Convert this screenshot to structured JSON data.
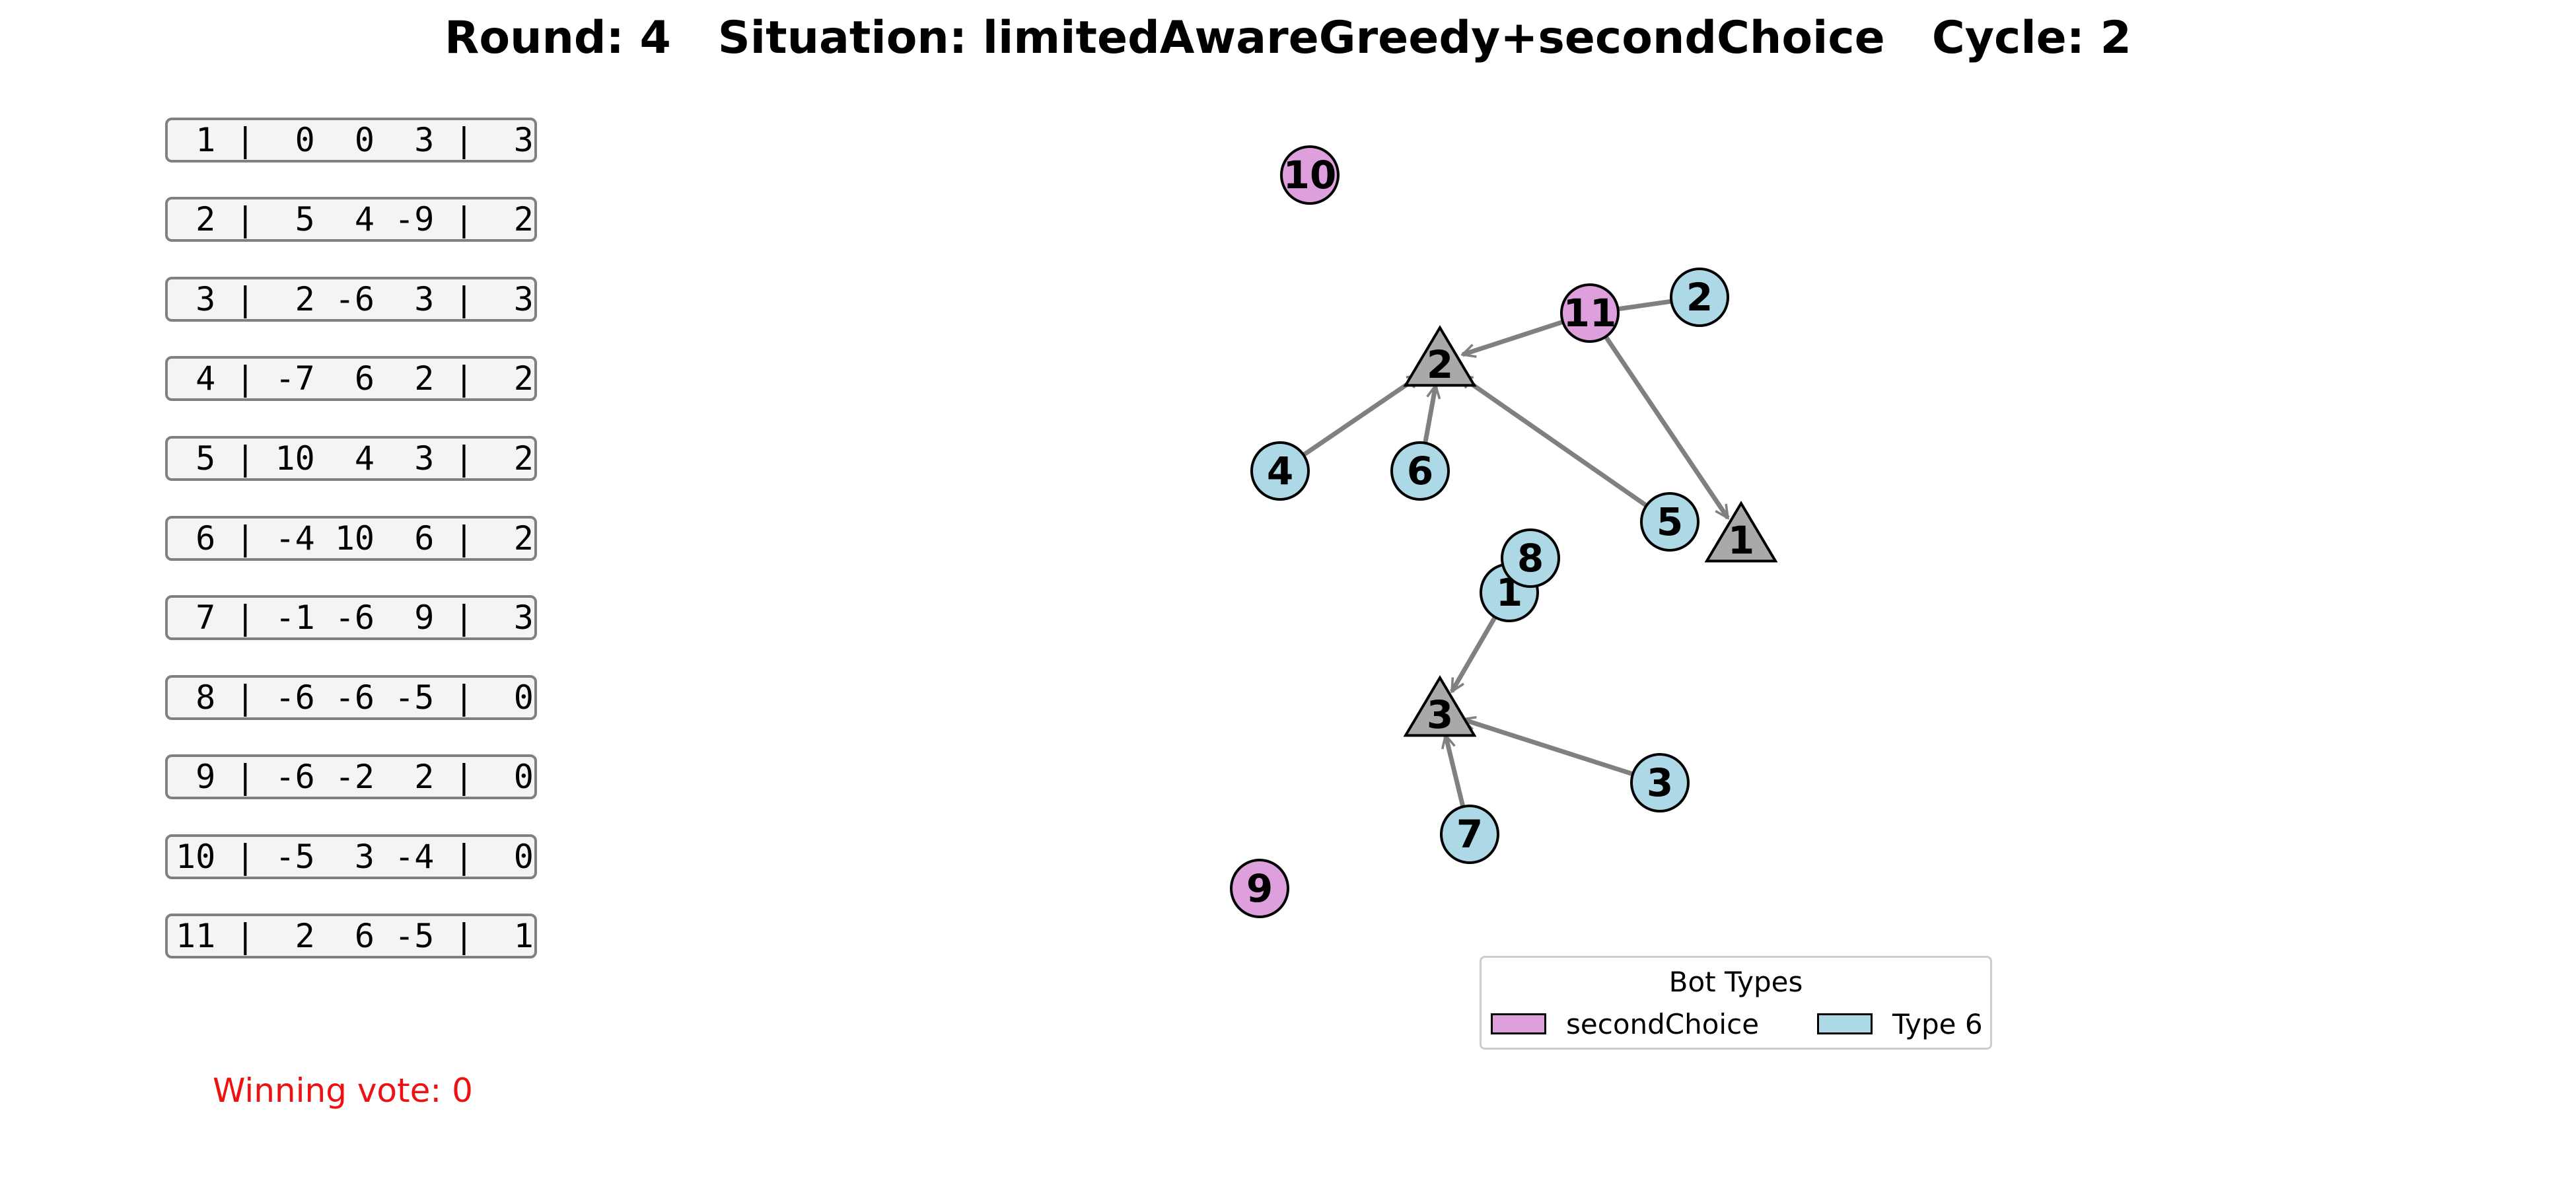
{
  "header": {
    "title": "Round: 4   Situation: limitedAwareGreedy+secondChoice   Cycle: 2"
  },
  "table": {
    "rows": [
      " 1 |  0  0  3 |  3",
      " 2 |  5  4 -9 |  2",
      " 3 |  2 -6  3 |  3",
      " 4 | -7  6  2 |  2",
      " 5 | 10  4  3 |  2",
      " 6 | -4 10  6 |  2",
      " 7 | -1 -6  9 |  3",
      " 8 | -6 -6 -5 |  0",
      " 9 | -6 -2  2 |  0",
      "10 | -5  3 -4 |  0",
      "11 |  2  6 -5 |  1"
    ]
  },
  "footer": {
    "winning_vote": "Winning vote: 0"
  },
  "colors": {
    "secondChoice": "#dda0dd",
    "type6": "#add8e6",
    "option": "#a9a9a9",
    "edge": "#808080",
    "winning": "#ee1111"
  },
  "graph": {
    "options": [
      {
        "id": "opt-2",
        "label": "2"
      },
      {
        "id": "opt-1",
        "label": "1"
      },
      {
        "id": "opt-3",
        "label": "3"
      }
    ],
    "bots": [
      {
        "id": "bot-10",
        "label": "10",
        "type": "secondChoice"
      },
      {
        "id": "bot-11",
        "label": "11",
        "type": "secondChoice"
      },
      {
        "id": "bot-9",
        "label": "9",
        "type": "secondChoice"
      },
      {
        "id": "bot-2",
        "label": "2",
        "type": "type6"
      },
      {
        "id": "bot-4",
        "label": "4",
        "type": "type6"
      },
      {
        "id": "bot-6",
        "label": "6",
        "type": "type6"
      },
      {
        "id": "bot-5",
        "label": "5",
        "type": "type6"
      },
      {
        "id": "bot-1",
        "label": "1",
        "type": "type6"
      },
      {
        "id": "bot-8",
        "label": "8",
        "type": "type6"
      },
      {
        "id": "bot-3",
        "label": "3",
        "type": "type6"
      },
      {
        "id": "bot-7",
        "label": "7",
        "type": "type6"
      }
    ],
    "edges": [
      {
        "from": "bot-11",
        "to": "opt-2"
      },
      {
        "from": "bot-4",
        "to": "opt-2"
      },
      {
        "from": "bot-6",
        "to": "opt-2"
      },
      {
        "from": "bot-5",
        "to": "opt-2"
      },
      {
        "from": "bot-11",
        "to": "opt-1"
      },
      {
        "from": "bot-1",
        "to": "opt-3"
      },
      {
        "from": "bot-7",
        "to": "opt-3"
      },
      {
        "from": "bot-3",
        "to": "opt-3"
      }
    ],
    "links": [
      {
        "from": "bot-11",
        "to": "bot-2"
      }
    ]
  },
  "legend": {
    "title": "Bot Types",
    "items": [
      {
        "label": "secondChoice",
        "color": "#dda0dd"
      },
      {
        "label": "Type 6",
        "color": "#add8e6"
      }
    ]
  }
}
